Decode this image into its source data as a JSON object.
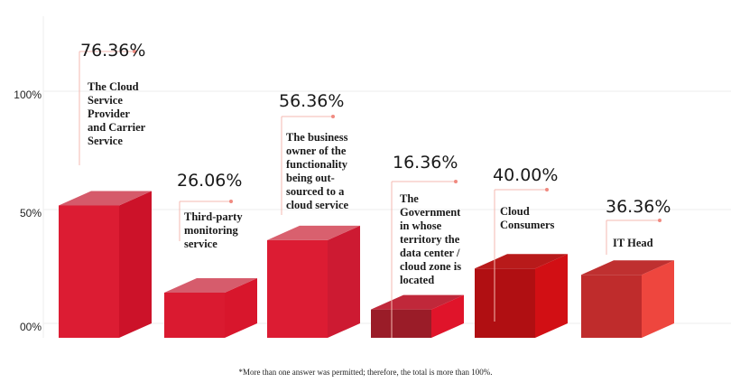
{
  "chart_data": {
    "type": "bar",
    "style": "3d",
    "categories": [
      [
        "The Cloud",
        "Service",
        "Provider",
        "and Carrier",
        "Service"
      ],
      [
        "Third-party",
        "monitoring",
        "service"
      ],
      [
        "The business",
        "owner of the",
        "functionality",
        "being out-",
        "sourced to a",
        "cloud service"
      ],
      [
        "The",
        "Government",
        "in whose",
        "territory the",
        "data center /",
        "cloud zone is",
        "located"
      ],
      [
        "Cloud",
        "Consumers"
      ],
      [
        "IT Head"
      ]
    ],
    "values": [
      76.36,
      26.06,
      56.36,
      16.36,
      40.0,
      36.36
    ],
    "value_labels": [
      "76.36%",
      "26.06%",
      "56.36%",
      "16.36%",
      "40.00%",
      "36.36%"
    ],
    "y_ticks": [
      {
        "value": 0,
        "label": "00%"
      },
      {
        "value": 50,
        "label": "50%"
      },
      {
        "value": 100,
        "label": "100%"
      }
    ],
    "grid": true,
    "footnote": "*More than one answer was permitted; therefore, the total is more than 100%.",
    "colors": {
      "front": [
        "#dc1c33",
        "#da1a30",
        "#dc1c33",
        "#9a1c28",
        "#b00f12",
        "#bf2c2c"
      ],
      "side": [
        "#cc1229",
        "#d8162c",
        "#cd1a32",
        "#e0142a",
        "#d20f14",
        "#ee463e"
      ],
      "top": [
        "#d55a6a",
        "#d65c6c",
        "#d9606e",
        "#c0283a",
        "#b81a1a",
        "#bf3030"
      ],
      "leader": "#f4b8b0",
      "dot": "#f08a80",
      "grid": "#eeeeee"
    }
  }
}
